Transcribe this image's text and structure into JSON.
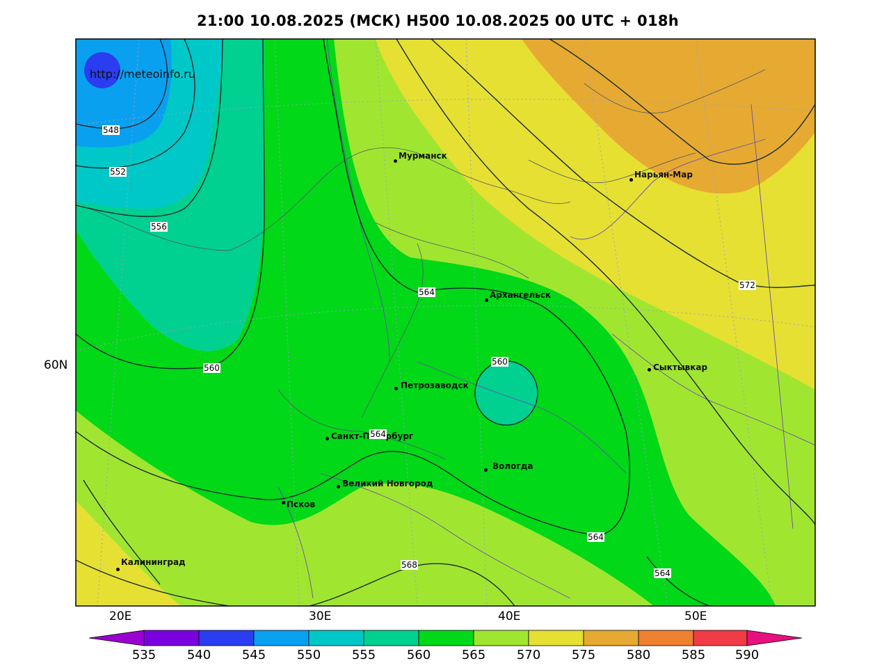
{
  "title": "21:00 10.08.2025 (МСК) H500  10.08.2025 00 UTC + 018h",
  "source_url": "http://meteoinfo.ru",
  "lat_labels": [
    "60N"
  ],
  "lon_labels": [
    "20E",
    "30E",
    "40E",
    "50E"
  ],
  "colorbar": {
    "values": [
      "535",
      "540",
      "545",
      "550",
      "555",
      "560",
      "565",
      "570",
      "575",
      "580",
      "585",
      "590"
    ],
    "colors": [
      "#9a00d0",
      "#7a00e0",
      "#2a3df0",
      "#0aa0f0",
      "#00c8c8",
      "#00d090",
      "#00d818",
      "#a0e630",
      "#e6e032",
      "#e6aa32",
      "#ee8030",
      "#f03c46",
      "#e8107e"
    ]
  },
  "cities": [
    {
      "name": "Мурманск"
    },
    {
      "name": "Нарьян-Мар"
    },
    {
      "name": "Архангельск"
    },
    {
      "name": "Сыктывкар"
    },
    {
      "name": "Петрозаводск"
    },
    {
      "name": "Санкт-Петербург"
    },
    {
      "name": "Вологда"
    },
    {
      "name": "Великий Новгород"
    },
    {
      "name": "Псков"
    },
    {
      "name": "Калининград"
    }
  ],
  "contour_labels": [
    "548",
    "552",
    "556",
    "560",
    "564",
    "560",
    "564",
    "568",
    "564",
    "564",
    "572"
  ]
}
